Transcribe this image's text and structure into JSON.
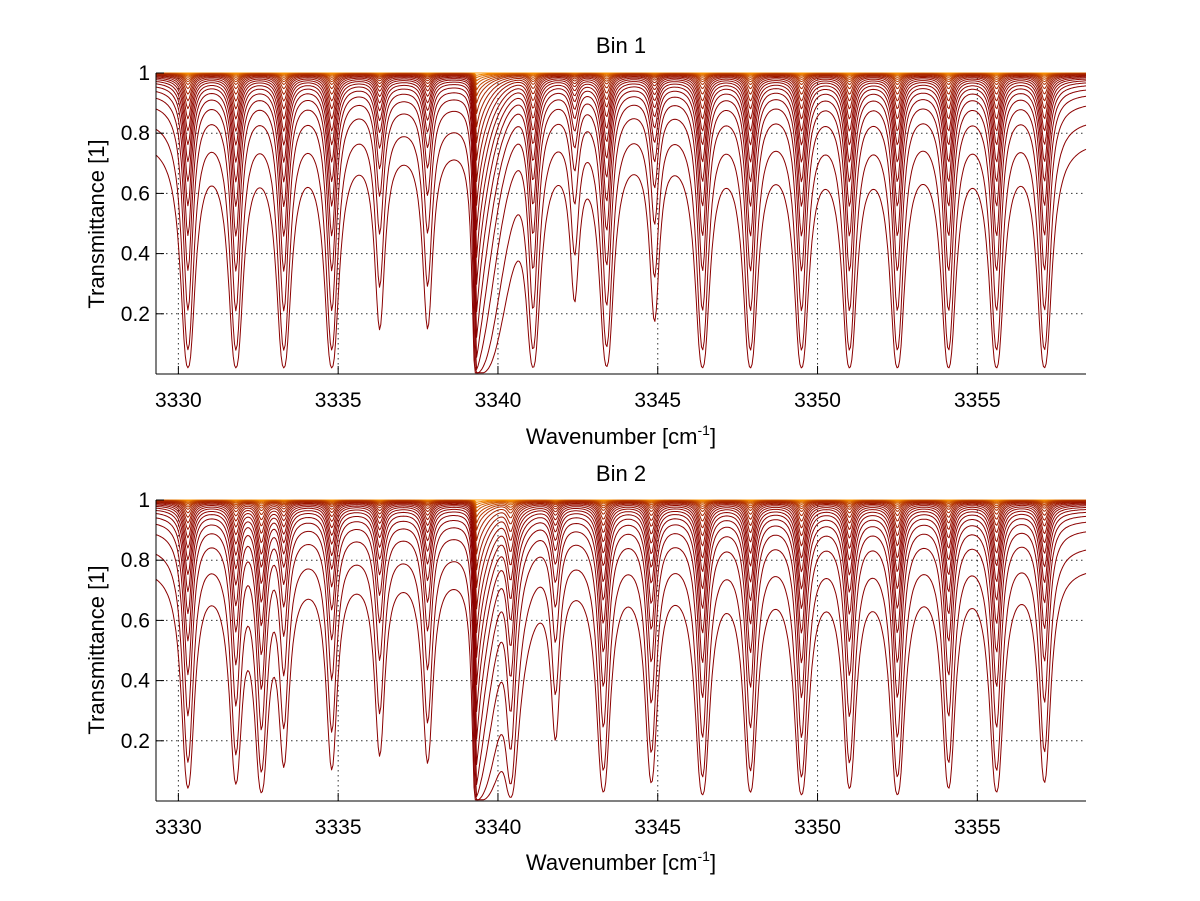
{
  "chart_data": [
    {
      "type": "line",
      "title": "Bin 1",
      "xlabel": "Wavenumber [cm",
      "xlabel_sup": "-1",
      "xlabel_end": "]",
      "ylabel": "Transmittance [1]",
      "xlim": [
        3329.3,
        3358.4
      ],
      "ylim": [
        0.0,
        1.0
      ],
      "x_ticks": [
        3330,
        3335,
        3340,
        3345,
        3350,
        3355
      ],
      "x_tick_labels": [
        "3330",
        "3335",
        "3340",
        "3345",
        "3350",
        "3355"
      ],
      "y_ticks": [
        0.2,
        0.4,
        0.6,
        0.8,
        1.0
      ],
      "y_tick_labels": [
        "0.2",
        "0.4",
        "0.6",
        "0.8",
        "1"
      ],
      "grid": true,
      "color_range": [
        "#8b0000",
        "#ff9900"
      ],
      "strong_line_center": 3339.3,
      "line_centers": [
        3330.3,
        3331.8,
        3333.3,
        3334.8,
        3336.3,
        3337.8,
        3341.1,
        3342.4,
        3343.4,
        3344.9,
        3346.4,
        3347.9,
        3349.5,
        3351.0,
        3352.5,
        3354.1,
        3355.6,
        3357.1
      ],
      "line_depths": [
        1.0,
        1.0,
        1.0,
        1.0,
        0.45,
        0.45,
        0.95,
        0.3,
        0.95,
        0.4,
        1.0,
        1.0,
        1.0,
        1.0,
        1.0,
        1.0,
        1.0,
        1.0
      ],
      "optical_depths": [
        0.0,
        0.003,
        0.006,
        0.01,
        0.015,
        0.022,
        0.03,
        0.04,
        0.055,
        0.075,
        0.1,
        0.13,
        0.17,
        0.22,
        0.28,
        0.36,
        0.46,
        0.6,
        0.8,
        1.1,
        1.6,
        2.6,
        4.0
      ],
      "series_count": 23
    },
    {
      "type": "line",
      "title": "Bin 2",
      "xlabel": "Wavenumber [cm",
      "xlabel_sup": "-1",
      "xlabel_end": "]",
      "ylabel": "Transmittance [1]",
      "xlim": [
        3329.3,
        3358.4
      ],
      "ylim": [
        0.0,
        1.0
      ],
      "x_ticks": [
        3330,
        3335,
        3340,
        3345,
        3350,
        3355
      ],
      "x_tick_labels": [
        "3330",
        "3335",
        "3340",
        "3345",
        "3350",
        "3355"
      ],
      "y_ticks": [
        0.2,
        0.4,
        0.6,
        0.8,
        1.0
      ],
      "y_tick_labels": [
        "0.2",
        "0.4",
        "0.6",
        "0.8",
        "1"
      ],
      "grid": true,
      "color_range": [
        "#8b0000",
        "#ff9900"
      ],
      "strong_line_center": 3339.3,
      "line_centers": [
        3330.3,
        3331.8,
        3332.6,
        3333.3,
        3334.8,
        3336.3,
        3337.8,
        3340.4,
        3341.8,
        3343.3,
        3344.8,
        3346.4,
        3347.9,
        3349.5,
        3351.0,
        3352.5,
        3354.1,
        3355.6,
        3357.1
      ],
      "line_depths": [
        0.8,
        0.7,
        0.9,
        0.5,
        0.55,
        0.45,
        0.5,
        0.95,
        0.35,
        0.9,
        0.7,
        1.0,
        0.9,
        1.0,
        0.8,
        1.0,
        0.8,
        0.9,
        0.7
      ],
      "optical_depths": [
        0.0,
        0.003,
        0.006,
        0.01,
        0.015,
        0.022,
        0.03,
        0.04,
        0.055,
        0.075,
        0.1,
        0.13,
        0.17,
        0.22,
        0.28,
        0.36,
        0.46,
        0.6,
        0.8,
        1.1,
        1.6,
        2.6,
        4.0
      ],
      "series_count": 23
    }
  ]
}
